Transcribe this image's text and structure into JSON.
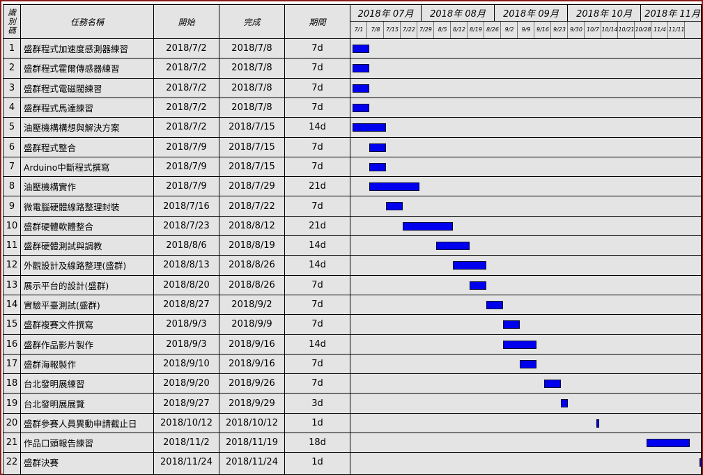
{
  "header": {
    "id_label_chars": [
      "識",
      "別",
      "碼"
    ],
    "name_label": "任務名稱",
    "start_label": "開始",
    "finish_label": "完成",
    "duration_label": "期間"
  },
  "timeline": {
    "months": [
      "2018年 07月",
      "2018年 08月",
      "2018年 09月",
      "2018年 10月",
      "2018年 11月"
    ],
    "weeks": [
      "7/1",
      "7/8",
      "7/15",
      "7/22",
      "7/29",
      "8/5",
      "8/12",
      "8/19",
      "8/26",
      "9/2",
      "9/9",
      "9/16",
      "9/23",
      "9/30",
      "10/7",
      "10/14",
      "10/21",
      "10/28",
      "11/4",
      "11/11"
    ]
  },
  "bar_color": "#0000ee",
  "frame_color": "#8b1a1a",
  "tasks": [
    {
      "id": "1",
      "name": "盛群程式加速度感測器練習",
      "start": "2018/7/2",
      "finish": "2018/7/8",
      "duration": "7d"
    },
    {
      "id": "2",
      "name": "盛群程式霍爾傳感器練習",
      "start": "2018/7/2",
      "finish": "2018/7/8",
      "duration": "7d"
    },
    {
      "id": "3",
      "name": "盛群程式電磁閥練習",
      "start": "2018/7/2",
      "finish": "2018/7/8",
      "duration": "7d"
    },
    {
      "id": "4",
      "name": "盛群程式馬達練習",
      "start": "2018/7/2",
      "finish": "2018/7/8",
      "duration": "7d"
    },
    {
      "id": "5",
      "name": "油壓機構構想與解決方案",
      "start": "2018/7/2",
      "finish": "2018/7/15",
      "duration": "14d"
    },
    {
      "id": "6",
      "name": "盛群程式整合",
      "start": "2018/7/9",
      "finish": "2018/7/15",
      "duration": "7d"
    },
    {
      "id": "7",
      "name": "Arduino中斷程式撰寫",
      "start": "2018/7/9",
      "finish": "2018/7/15",
      "duration": "7d"
    },
    {
      "id": "8",
      "name": "油壓機構實作",
      "start": "2018/7/9",
      "finish": "2018/7/29",
      "duration": "21d"
    },
    {
      "id": "9",
      "name": "微電腦硬體線路整理封裝",
      "start": "2018/7/16",
      "finish": "2018/7/22",
      "duration": "7d"
    },
    {
      "id": "10",
      "name": "盛群硬體軟體整合",
      "start": "2018/7/23",
      "finish": "2018/8/12",
      "duration": "21d"
    },
    {
      "id": "11",
      "name": "盛群硬體測試與調教",
      "start": "2018/8/6",
      "finish": "2018/8/19",
      "duration": "14d"
    },
    {
      "id": "12",
      "name": "外觀設計及線路整理(盛群)",
      "start": "2018/8/13",
      "finish": "2018/8/26",
      "duration": "14d"
    },
    {
      "id": "13",
      "name": "展示平台的設計(盛群)",
      "start": "2018/8/20",
      "finish": "2018/8/26",
      "duration": "7d"
    },
    {
      "id": "14",
      "name": "實驗平臺測試(盛群)",
      "start": "2018/8/27",
      "finish": "2018/9/2",
      "duration": "7d"
    },
    {
      "id": "15",
      "name": "盛群複賽文件撰寫",
      "start": "2018/9/3",
      "finish": "2018/9/9",
      "duration": "7d"
    },
    {
      "id": "16",
      "name": "盛群作品影片製作",
      "start": "2018/9/3",
      "finish": "2018/9/16",
      "duration": "14d"
    },
    {
      "id": "17",
      "name": "盛群海報製作",
      "start": "2018/9/10",
      "finish": "2018/9/16",
      "duration": "7d"
    },
    {
      "id": "18",
      "name": "台北發明展練習",
      "start": "2018/9/20",
      "finish": "2018/9/26",
      "duration": "7d"
    },
    {
      "id": "19",
      "name": "台北發明展展覽",
      "start": "2018/9/27",
      "finish": "2018/9/29",
      "duration": "3d"
    },
    {
      "id": "20",
      "name": "盛群參賽人員異動申請截止日",
      "start": "2018/10/12",
      "finish": "2018/10/12",
      "duration": "1d"
    },
    {
      "id": "21",
      "name": "作品口頭報告練習",
      "start": "2018/11/2",
      "finish": "2018/11/19",
      "duration": "18d"
    },
    {
      "id": "22",
      "name": "盛群決賽",
      "start": "2018/11/24",
      "finish": "2018/11/24",
      "duration": "1d"
    }
  ]
}
